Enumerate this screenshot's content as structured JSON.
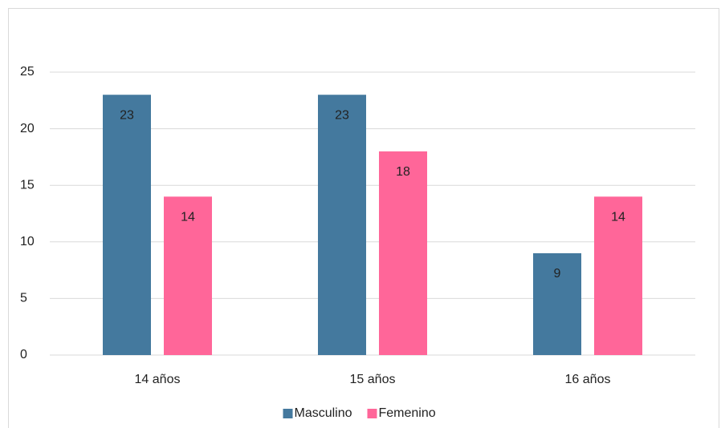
{
  "chart_data": {
    "type": "bar",
    "categories": [
      "14 años",
      "15 años",
      "16 años"
    ],
    "series": [
      {
        "name": "Masculino",
        "color": "#44799e",
        "values": [
          23,
          23,
          9
        ]
      },
      {
        "name": "Femenino",
        "color": "#ff6699",
        "values": [
          14,
          18,
          14
        ]
      }
    ],
    "ylim": [
      0,
      25
    ],
    "yticks": [
      0,
      5,
      10,
      15,
      20,
      25
    ],
    "grid": true,
    "legend": "bottom"
  }
}
